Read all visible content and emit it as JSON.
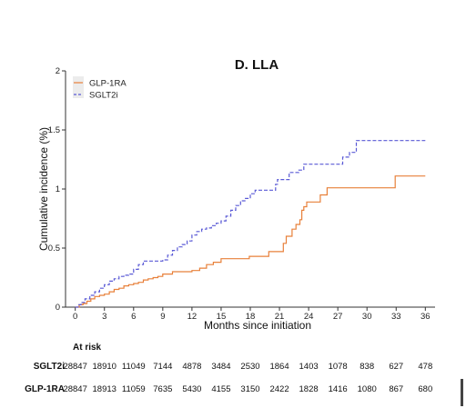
{
  "chart_data": {
    "type": "line",
    "title": "D. LLA",
    "xlabel": "Months since initiation",
    "ylabel": "Cumulative incidence (%)",
    "xlim": [
      -1,
      37
    ],
    "ylim": [
      0,
      2
    ],
    "xticks": [
      0,
      3,
      6,
      9,
      12,
      15,
      18,
      21,
      24,
      27,
      30,
      33,
      36
    ],
    "yticks": [
      0,
      0.5,
      1,
      1.5,
      2
    ],
    "ytick_labels": [
      "0",
      "0.5",
      "1",
      "1.5",
      "2"
    ],
    "grid": false,
    "legend_position": "top-left",
    "series": [
      {
        "name": "GLP-1RA",
        "color": "#e8803a",
        "style": "solid",
        "points": [
          [
            0,
            0
          ],
          [
            0.4,
            0.02
          ],
          [
            0.8,
            0.03
          ],
          [
            1.2,
            0.05
          ],
          [
            1.6,
            0.07
          ],
          [
            2,
            0.09
          ],
          [
            2.5,
            0.1
          ],
          [
            3,
            0.11
          ],
          [
            3.5,
            0.13
          ],
          [
            4,
            0.15
          ],
          [
            4.5,
            0.16
          ],
          [
            5,
            0.18
          ],
          [
            5.5,
            0.19
          ],
          [
            6,
            0.2
          ],
          [
            6.5,
            0.21
          ],
          [
            7,
            0.23
          ],
          [
            7.5,
            0.24
          ],
          [
            8,
            0.25
          ],
          [
            8.5,
            0.26
          ],
          [
            9,
            0.28
          ],
          [
            10,
            0.3
          ],
          [
            11,
            0.3
          ],
          [
            12,
            0.31
          ],
          [
            12.8,
            0.33
          ],
          [
            13.5,
            0.36
          ],
          [
            14.2,
            0.38
          ],
          [
            15,
            0.41
          ],
          [
            16.5,
            0.41
          ],
          [
            17.9,
            0.43
          ],
          [
            19,
            0.43
          ],
          [
            19.9,
            0.47
          ],
          [
            21,
            0.47
          ],
          [
            21.4,
            0.54
          ],
          [
            21.7,
            0.6
          ],
          [
            22,
            0.6
          ],
          [
            22.3,
            0.66
          ],
          [
            22.7,
            0.7
          ],
          [
            23.1,
            0.74
          ],
          [
            23.3,
            0.82
          ],
          [
            23.5,
            0.85
          ],
          [
            23.8,
            0.89
          ],
          [
            24.1,
            0.89
          ],
          [
            25.2,
            0.95
          ],
          [
            25.9,
            1.01
          ],
          [
            29,
            1.01
          ],
          [
            32.9,
            1.01
          ],
          [
            32.9,
            1.11
          ],
          [
            36,
            1.11
          ]
        ]
      },
      {
        "name": "SGLT2i",
        "color": "#5a5ad6",
        "style": "dashed",
        "points": [
          [
            0,
            0
          ],
          [
            0.3,
            0.02
          ],
          [
            0.6,
            0.04
          ],
          [
            1,
            0.07
          ],
          [
            1.5,
            0.1
          ],
          [
            2,
            0.13
          ],
          [
            2.5,
            0.16
          ],
          [
            3,
            0.19
          ],
          [
            3.5,
            0.22
          ],
          [
            4,
            0.24
          ],
          [
            4.5,
            0.26
          ],
          [
            5,
            0.27
          ],
          [
            5.5,
            0.28
          ],
          [
            6,
            0.32
          ],
          [
            6.5,
            0.36
          ],
          [
            7,
            0.39
          ],
          [
            8,
            0.39
          ],
          [
            9,
            0.4
          ],
          [
            9.5,
            0.44
          ],
          [
            10,
            0.48
          ],
          [
            10.5,
            0.51
          ],
          [
            11,
            0.53
          ],
          [
            11.5,
            0.56
          ],
          [
            12,
            0.61
          ],
          [
            12.5,
            0.64
          ],
          [
            13,
            0.66
          ],
          [
            13.5,
            0.67
          ],
          [
            14,
            0.69
          ],
          [
            14.5,
            0.71
          ],
          [
            15,
            0.73
          ],
          [
            15.5,
            0.77
          ],
          [
            16,
            0.82
          ],
          [
            16.5,
            0.86
          ],
          [
            17,
            0.9
          ],
          [
            17.5,
            0.92
          ],
          [
            18,
            0.96
          ],
          [
            18.5,
            0.99
          ],
          [
            20,
            0.99
          ],
          [
            20.6,
            1.04
          ],
          [
            20.8,
            1.08
          ],
          [
            22,
            1.14
          ],
          [
            23,
            1.16
          ],
          [
            23.5,
            1.21
          ],
          [
            27,
            1.21
          ],
          [
            27.5,
            1.27
          ],
          [
            28.2,
            1.31
          ],
          [
            28.9,
            1.41
          ],
          [
            36,
            1.41
          ]
        ]
      }
    ]
  },
  "risk_table": {
    "title": "At risk",
    "rows": [
      {
        "label": "SGLT2i",
        "values": [
          "28847",
          "18910",
          "11049",
          "7144",
          "4878",
          "3484",
          "2530",
          "1864",
          "1403",
          "1078",
          "838",
          "627",
          "478"
        ]
      },
      {
        "label": "GLP-1RA",
        "values": [
          "28847",
          "18913",
          "11059",
          "7635",
          "5430",
          "4155",
          "3150",
          "2422",
          "1828",
          "1416",
          "1080",
          "867",
          "680"
        ]
      }
    ]
  }
}
